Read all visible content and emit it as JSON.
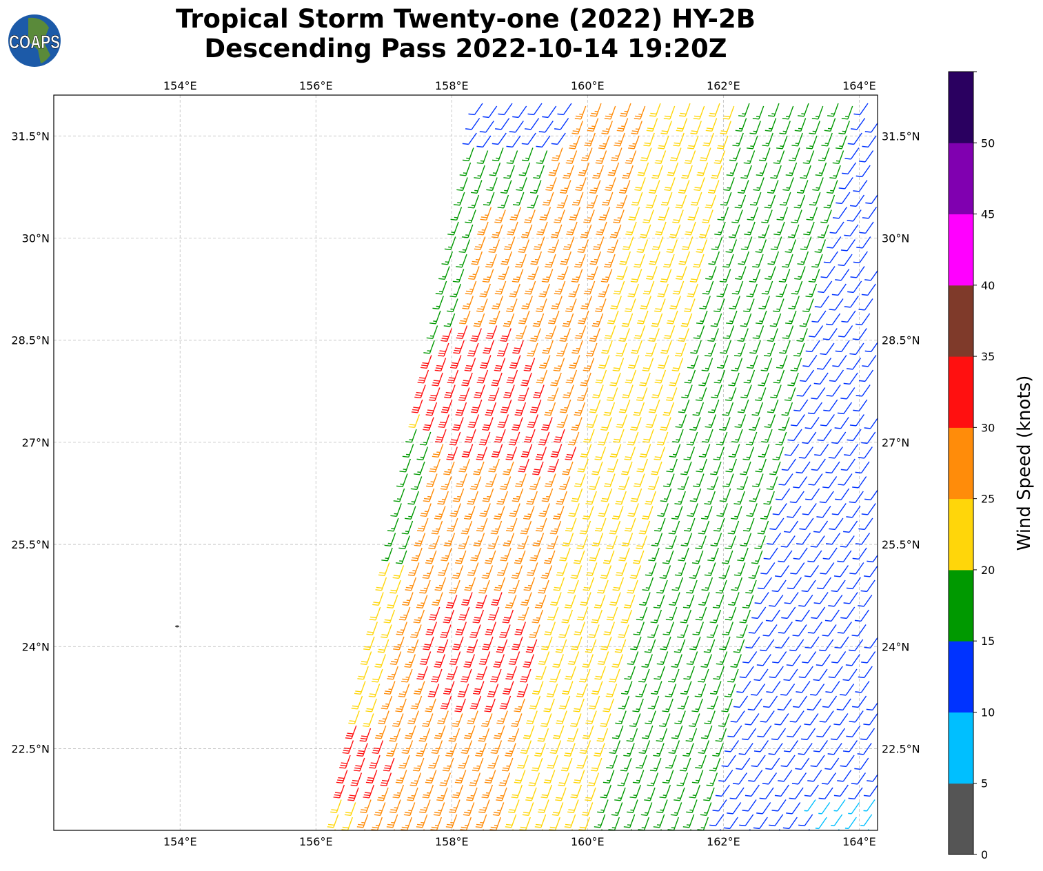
{
  "title": {
    "line1": "Tropical Storm Twenty-one (2022) HY-2B",
    "line2": "Descending Pass 2022-10-14 19:20Z"
  },
  "logo": {
    "text": "COAPS"
  },
  "map": {
    "type": "wind-barb",
    "lon_range": [
      152.14,
      164.27
    ],
    "lat_range": [
      21.3,
      32.1
    ],
    "lon_ticks": [
      154,
      156,
      158,
      160,
      162,
      164
    ],
    "lon_tick_labels": [
      "154°E",
      "156°E",
      "158°E",
      "160°E",
      "162°E",
      "164°E"
    ],
    "lat_ticks": [
      22.5,
      24,
      25.5,
      27,
      28.5,
      30,
      31.5
    ],
    "lat_tick_labels": [
      "22.5°N",
      "24°N",
      "25.5°N",
      "27°N",
      "28.5°N",
      "30°N",
      "31.5°N"
    ],
    "grid": true
  },
  "colorbar": {
    "label": "Wind Speed (knots)",
    "bounds": [
      0,
      5,
      10,
      15,
      20,
      25,
      30,
      35,
      40,
      45,
      50,
      55
    ],
    "tick_labels": [
      "0",
      "5",
      "10",
      "15",
      "20",
      "25",
      "30",
      "35",
      "40",
      "45",
      "50"
    ],
    "colors": [
      "#555555",
      "#00bfff",
      "#0033ff",
      "#009900",
      "#ffd60a",
      "#ff8c0a",
      "#ff1010",
      "#7f3a2a",
      "#ff00ff",
      "#8000b0",
      "#2a0060"
    ]
  }
}
